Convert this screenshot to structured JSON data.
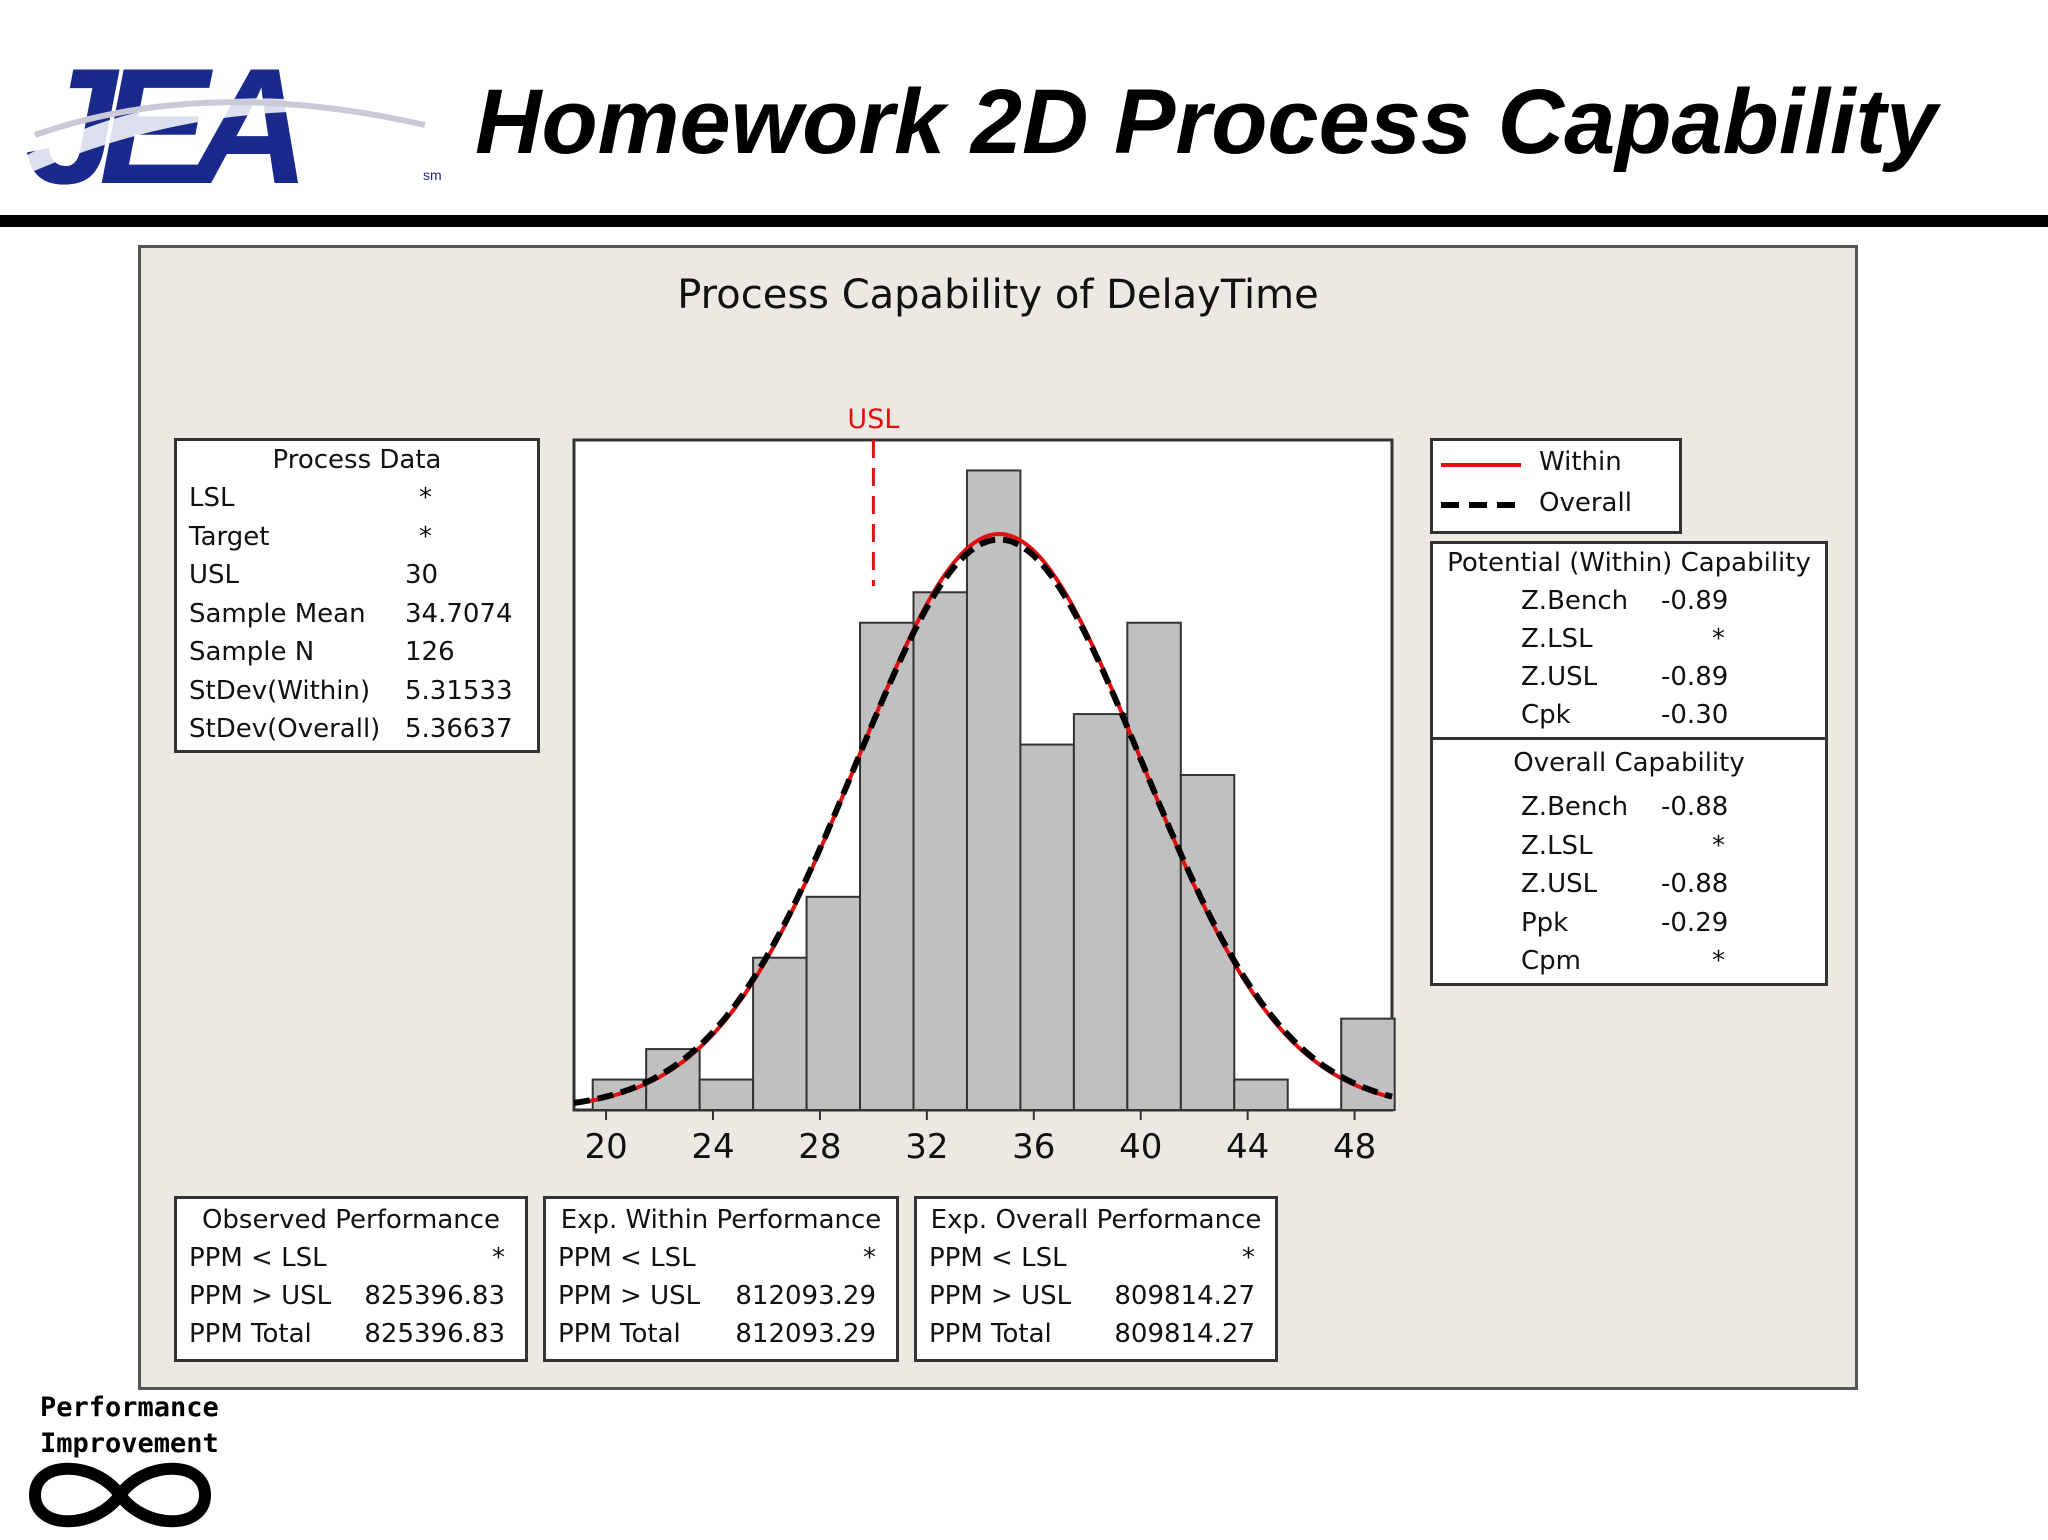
{
  "slide": {
    "title": "Homework 2D Process Capability",
    "footer_line1": "Performance",
    "footer_line2": "Improvement"
  },
  "logo": {
    "text": "JEA",
    "mark": "sm",
    "color": "#1a2a8c"
  },
  "process_data": {
    "header": "Process Data",
    "rows": [
      {
        "label": "LSL",
        "value": "*"
      },
      {
        "label": "Target",
        "value": "*"
      },
      {
        "label": "USL",
        "value": "30"
      },
      {
        "label": "Sample Mean",
        "value": "34.7074"
      },
      {
        "label": "Sample N",
        "value": "126"
      },
      {
        "label": "StDev(Within)",
        "value": "5.31533"
      },
      {
        "label": "StDev(Overall)",
        "value": "5.36637"
      }
    ]
  },
  "legend": {
    "within": "Within",
    "overall": "Overall",
    "within_color": "#e01010",
    "overall_color": "#000000"
  },
  "potential": {
    "header": "Potential (Within) Capability",
    "rows": [
      {
        "label": "Z.Bench",
        "value": "-0.89"
      },
      {
        "label": "Z.LSL",
        "value": "*"
      },
      {
        "label": "Z.USL",
        "value": "-0.89"
      },
      {
        "label": "Cpk",
        "value": "-0.30"
      }
    ]
  },
  "overall_cap": {
    "header": "Overall Capability",
    "rows": [
      {
        "label": "Z.Bench",
        "value": "-0.88"
      },
      {
        "label": "Z.LSL",
        "value": "*"
      },
      {
        "label": "Z.USL",
        "value": "-0.88"
      },
      {
        "label": "Ppk",
        "value": "-0.29"
      },
      {
        "label": "Cpm",
        "value": "*"
      }
    ]
  },
  "observed": {
    "header": "Observed Performance",
    "rows": [
      {
        "label": "PPM < LSL",
        "value": "*"
      },
      {
        "label": "PPM > USL",
        "value": "825396.83"
      },
      {
        "label": "PPM Total",
        "value": "825396.83"
      }
    ]
  },
  "exp_within": {
    "header": "Exp. Within Performance",
    "rows": [
      {
        "label": "PPM < LSL",
        "value": "*"
      },
      {
        "label": "PPM > USL",
        "value": "812093.29"
      },
      {
        "label": "PPM Total",
        "value": "812093.29"
      }
    ]
  },
  "exp_overall": {
    "header": "Exp. Overall Performance",
    "rows": [
      {
        "label": "PPM < LSL",
        "value": "*"
      },
      {
        "label": "PPM > USL",
        "value": "809814.27"
      },
      {
        "label": "PPM Total",
        "value": "809814.27"
      }
    ]
  },
  "chart_data": {
    "type": "bar",
    "title": "Process Capability of DelayTime",
    "xlabel": "",
    "ylabel": "",
    "xlim": [
      18.8,
      49.4
    ],
    "ylim": [
      0,
      22
    ],
    "x_ticks": [
      20,
      24,
      28,
      32,
      36,
      40,
      44,
      48
    ],
    "bin_width": 2,
    "bins": [
      {
        "start": 19.5,
        "count": 1
      },
      {
        "start": 21.5,
        "count": 2
      },
      {
        "start": 23.5,
        "count": 1
      },
      {
        "start": 25.5,
        "count": 5
      },
      {
        "start": 27.5,
        "count": 7
      },
      {
        "start": 29.5,
        "count": 16
      },
      {
        "start": 31.5,
        "count": 17
      },
      {
        "start": 33.5,
        "count": 21
      },
      {
        "start": 35.5,
        "count": 12
      },
      {
        "start": 37.5,
        "count": 13
      },
      {
        "start": 39.5,
        "count": 16
      },
      {
        "start": 41.5,
        "count": 11
      },
      {
        "start": 43.5,
        "count": 1
      },
      {
        "start": 45.5,
        "count": 0
      },
      {
        "start": 47.5,
        "count": 3
      }
    ],
    "usl": 30,
    "usl_label": "USL",
    "mean": 34.7074,
    "sd_within": 5.31533,
    "sd_overall": 5.36637,
    "n": 126,
    "bar_color": "#c0c0c0",
    "usl_color": "#e01010"
  }
}
